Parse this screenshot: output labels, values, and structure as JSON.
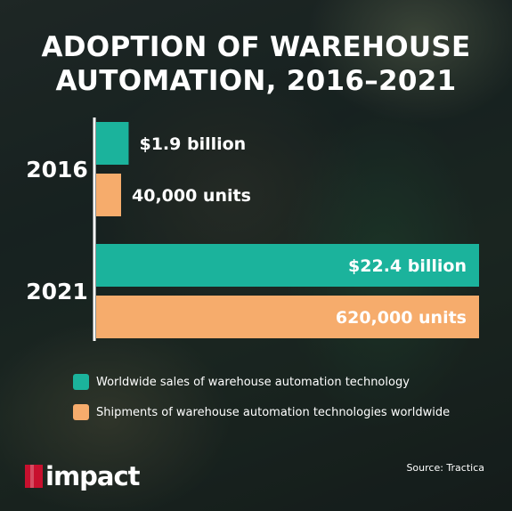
{
  "title_line1": "ADOPTION OF WAREHOUSE",
  "title_line2": "AUTOMATION, 2016–2021",
  "colors": {
    "sales": "#1bb39c",
    "shipments": "#f6ac6c",
    "text": "#ffffff"
  },
  "chart_data": {
    "type": "bar",
    "orientation": "horizontal",
    "categories": [
      "2016",
      "2021"
    ],
    "series": [
      {
        "name": "Worldwide sales of warehouse automation technology",
        "values": [
          1.9,
          22.4
        ],
        "unit": "billion USD",
        "labels": [
          "$1.9 billion",
          "$22.4 billion"
        ],
        "color": "#1bb39c"
      },
      {
        "name": "Shipments of warehouse automation technologies worldwide",
        "values": [
          40000,
          620000
        ],
        "unit": "units",
        "labels": [
          "40,000 units",
          "620,000 units"
        ],
        "color": "#f6ac6c"
      }
    ],
    "grid": false,
    "legend": "bottom-left"
  },
  "legend": [
    {
      "label": "Worldwide sales of warehouse automation technology",
      "color": "#1bb39c"
    },
    {
      "label": "Shipments of warehouse automation technologies worldwide",
      "color": "#f6ac6c"
    }
  ],
  "logo_text": "impact",
  "source": "Source: Tractica"
}
